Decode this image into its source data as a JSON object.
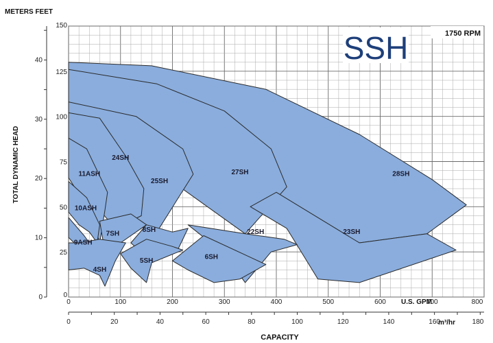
{
  "chart_data": {
    "type": "area",
    "series_label": "SSH",
    "speed_label": "1750 RPM",
    "meters_feet_label": "METERS FEET",
    "ylabel": "TOTAL DYNAMIC HEAD",
    "xlabel": "CAPACITY",
    "gpm_unit": "U.S. GPM",
    "m3_unit": "m³/hr",
    "feet_ticks": [
      "0",
      "25",
      "50",
      "75",
      "100",
      "125",
      "150"
    ],
    "meter_ticks": [
      "0",
      "10",
      "20",
      "30",
      "40"
    ],
    "gpm_ticks": [
      "0",
      "100",
      "200",
      "300",
      "400",
      "500",
      "600",
      "700",
      "800"
    ],
    "m3_ticks": [
      "0",
      "20",
      "40",
      "60",
      "80",
      "100",
      "120",
      "140",
      "160",
      "180"
    ],
    "xlim_gpm": [
      0,
      800
    ],
    "ylim_feet": [
      0,
      150
    ],
    "grid": true,
    "fill_color": "#8aaddd",
    "edge_color": "#2a2a2a",
    "title_color": "#1e3f7a",
    "zones": [
      {
        "label": "28SH",
        "polygon": [
          [
            0,
            110
          ],
          [
            0,
            130
          ],
          [
            160,
            128
          ],
          [
            380,
            115
          ],
          [
            560,
            90
          ],
          [
            700,
            65
          ],
          [
            766,
            51
          ],
          [
            690,
            35
          ],
          [
            560,
            30
          ],
          [
            400,
            55
          ],
          [
            280,
            72
          ]
        ]
      },
      {
        "label": "27SH",
        "polygon": [
          [
            0,
            100
          ],
          [
            0,
            126
          ],
          [
            170,
            118
          ],
          [
            300,
            103
          ],
          [
            390,
            82
          ],
          [
            420,
            61
          ],
          [
            340,
            35
          ],
          [
            180,
            68
          ]
        ]
      },
      {
        "label": "23SH",
        "polygon": [
          [
            400,
            58
          ],
          [
            560,
            30
          ],
          [
            690,
            35
          ],
          [
            746,
            26
          ],
          [
            560,
            8
          ],
          [
            480,
            10
          ],
          [
            420,
            38
          ],
          [
            350,
            50
          ]
        ]
      },
      {
        "label": "22SH",
        "polygon": [
          [
            230,
            40
          ],
          [
            340,
            35
          ],
          [
            415,
            32
          ],
          [
            440,
            29
          ],
          [
            390,
            25
          ],
          [
            340,
            8
          ],
          [
            300,
            24
          ]
        ]
      },
      {
        "label": "25SH",
        "polygon": [
          [
            90,
            75
          ],
          [
            0,
            96
          ],
          [
            0,
            108
          ],
          [
            130,
            100
          ],
          [
            220,
            82
          ],
          [
            240,
            68
          ],
          [
            170,
            36
          ],
          [
            120,
            45
          ]
        ]
      },
      {
        "label": "24SH",
        "polygon": [
          [
            0,
            85
          ],
          [
            0,
            102
          ],
          [
            60,
            99
          ],
          [
            110,
            78
          ],
          [
            145,
            60
          ],
          [
            140,
            45
          ],
          [
            90,
            38
          ],
          [
            60,
            48
          ],
          [
            40,
            68
          ]
        ]
      },
      {
        "label": "11ASH",
        "polygon": [
          [
            0,
            66
          ],
          [
            0,
            88
          ],
          [
            35,
            82
          ],
          [
            75,
            58
          ],
          [
            70,
            48
          ],
          [
            60,
            30
          ],
          [
            40,
            48
          ]
        ]
      },
      {
        "label": "10ASH",
        "polygon": [
          [
            0,
            47
          ],
          [
            0,
            64
          ],
          [
            35,
            55
          ],
          [
            60,
            40
          ],
          [
            55,
            30
          ],
          [
            40,
            36
          ],
          [
            20,
            40
          ]
        ]
      },
      {
        "label": "9ASH",
        "polygon": [
          [
            0,
            33
          ],
          [
            0,
            44
          ],
          [
            30,
            34
          ],
          [
            45,
            28
          ],
          [
            40,
            22
          ],
          [
            25,
            26
          ]
        ]
      },
      {
        "label": "7SH",
        "polygon": [
          [
            60,
            42
          ],
          [
            120,
            46
          ],
          [
            150,
            40
          ],
          [
            100,
            30
          ],
          [
            80,
            22
          ],
          [
            70,
            25
          ]
        ]
      },
      {
        "label": "8SH",
        "polygon": [
          [
            150,
            40
          ],
          [
            200,
            36
          ],
          [
            230,
            38
          ],
          [
            210,
            26
          ],
          [
            150,
            22
          ],
          [
            120,
            30
          ]
        ]
      },
      {
        "label": "4SH",
        "polygon": [
          [
            0,
            15
          ],
          [
            0,
            30
          ],
          [
            20,
            30
          ],
          [
            60,
            32
          ],
          [
            110,
            30
          ],
          [
            90,
            20
          ],
          [
            70,
            6
          ],
          [
            60,
            12
          ],
          [
            30,
            16
          ]
        ]
      },
      {
        "label": "5SH",
        "polygon": [
          [
            100,
            24
          ],
          [
            150,
            32
          ],
          [
            200,
            28
          ],
          [
            220,
            26
          ],
          [
            160,
            19
          ],
          [
            150,
            8
          ],
          [
            120,
            16
          ]
        ]
      },
      {
        "label": "6SH",
        "polygon": [
          [
            200,
            20
          ],
          [
            260,
            34
          ],
          [
            350,
            22
          ],
          [
            380,
            18
          ],
          [
            330,
            10
          ],
          [
            280,
            8
          ],
          [
            230,
            15
          ]
        ]
      }
    ],
    "label_positions_gpm_feet": [
      {
        "label": "28SH",
        "x": 640,
        "y": 67
      },
      {
        "label": "27SH",
        "x": 330,
        "y": 68
      },
      {
        "label": "25SH",
        "x": 175,
        "y": 63
      },
      {
        "label": "24SH",
        "x": 100,
        "y": 76
      },
      {
        "label": "11ASH",
        "x": 40,
        "y": 67
      },
      {
        "label": "10ASH",
        "x": 33,
        "y": 48
      },
      {
        "label": "9ASH",
        "x": 28,
        "y": 29
      },
      {
        "label": "7SH",
        "x": 85,
        "y": 34
      },
      {
        "label": "8SH",
        "x": 155,
        "y": 36
      },
      {
        "label": "22SH",
        "x": 360,
        "y": 35
      },
      {
        "label": "23SH",
        "x": 545,
        "y": 35
      },
      {
        "label": "4SH",
        "x": 60,
        "y": 14
      },
      {
        "label": "5SH",
        "x": 150,
        "y": 19
      },
      {
        "label": "6SH",
        "x": 275,
        "y": 21
      }
    ]
  }
}
